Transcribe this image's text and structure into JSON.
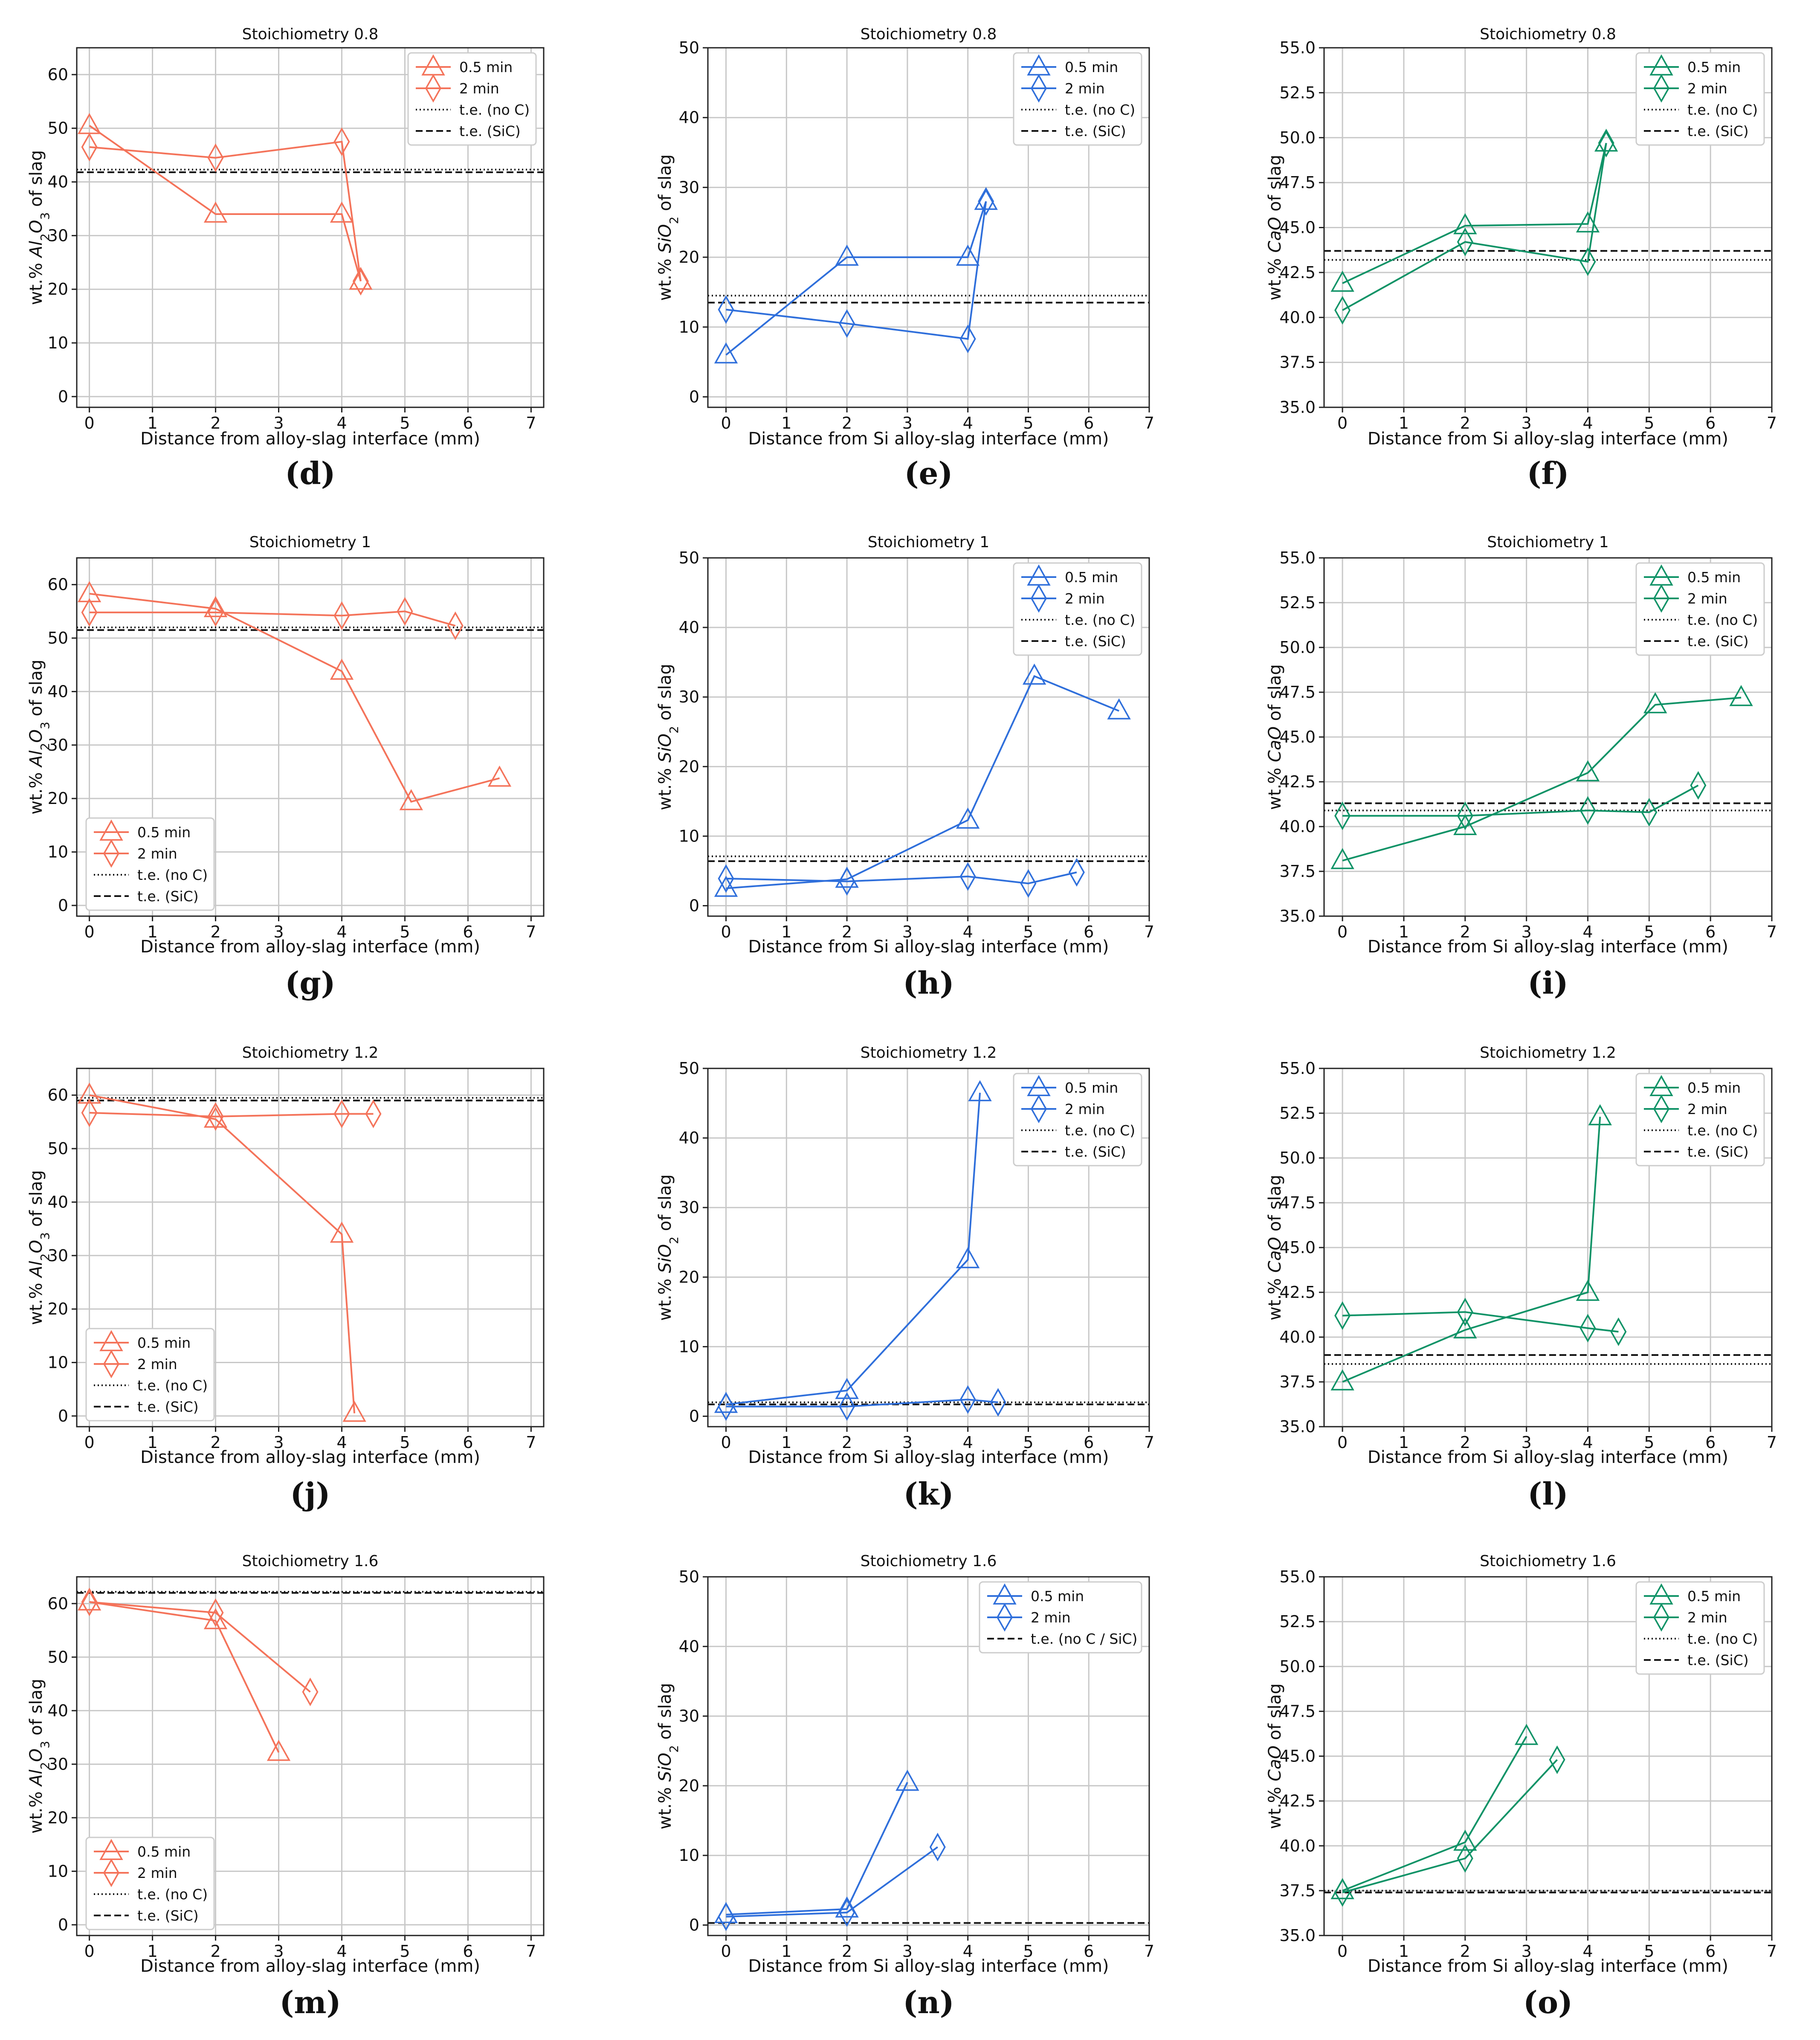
{
  "colors": {
    "al2o3": "#f4735a",
    "sio2": "#2f6fdb",
    "cao": "#109367",
    "te": "#111111"
  },
  "chart_data": [
    {
      "type": "line",
      "panel": "(d)",
      "title": "Stoichiometry 0.8",
      "xlabel": "Distance from alloy-slag interface (mm)",
      "ylabel": "wt.% Al2O3 of slag",
      "xlim": [
        -0.2,
        7.2
      ],
      "ylim": [
        -2,
        65
      ],
      "xticks": [
        "0",
        "1",
        "2",
        "3",
        "4",
        "5",
        "6",
        "7"
      ],
      "yticks": [
        "0",
        "10",
        "20",
        "30",
        "40",
        "50",
        "60"
      ],
      "legend_position": "top-right",
      "series": [
        {
          "name": "0.5 min",
          "marker": "triangle",
          "x": [
            0,
            2,
            4,
            4.3
          ],
          "y": [
            50.5,
            34,
            34,
            21.5
          ]
        },
        {
          "name": "2 min",
          "marker": "diamond",
          "x": [
            0,
            2,
            4,
            4.3
          ],
          "y": [
            46.5,
            44.5,
            47.5,
            21.5
          ]
        }
      ],
      "lines": [
        {
          "name": "t.e. (no C)",
          "style": "dotted",
          "y": 42.3
        },
        {
          "name": "t.e. (SiC)",
          "style": "dashed",
          "y": 41.8
        }
      ]
    },
    {
      "type": "line",
      "panel": "(e)",
      "title": "Stoichiometry 0.8",
      "xlabel": "Distance from Si alloy-slag interface (mm)",
      "ylabel": "wt.% SiO2 of slag",
      "xlim": [
        -0.3,
        7
      ],
      "ylim": [
        -1.5,
        50
      ],
      "xticks": [
        "0",
        "1",
        "2",
        "3",
        "4",
        "5",
        "6",
        "7"
      ],
      "yticks": [
        "0",
        "10",
        "20",
        "30",
        "40",
        "50"
      ],
      "legend_position": "top-right",
      "series": [
        {
          "name": "0.5 min",
          "marker": "triangle",
          "x": [
            0,
            2,
            4,
            4.3
          ],
          "y": [
            6,
            20,
            20,
            28
          ]
        },
        {
          "name": "2 min",
          "marker": "diamond",
          "x": [
            0,
            2,
            4,
            4.3
          ],
          "y": [
            12.5,
            10.5,
            8.3,
            28
          ]
        }
      ],
      "lines": [
        {
          "name": "t.e. (no C)",
          "style": "dotted",
          "y": 14.5
        },
        {
          "name": "t.e. (SiC)",
          "style": "dashed",
          "y": 13.5
        }
      ]
    },
    {
      "type": "line",
      "panel": "(f)",
      "title": "Stoichiometry 0.8",
      "xlabel": "Distance from Si alloy-slag interface (mm)",
      "ylabel": "wt.% CaO of slag",
      "xlim": [
        -0.3,
        7
      ],
      "ylim": [
        35,
        55
      ],
      "xticks": [
        "0",
        "1",
        "2",
        "3",
        "4",
        "5",
        "6",
        "7"
      ],
      "yticks": [
        "35.0",
        "37.5",
        "40.0",
        "42.5",
        "45.0",
        "47.5",
        "50.0",
        "52.5",
        "55.0"
      ],
      "legend_position": "top-right",
      "series": [
        {
          "name": "0.5 min",
          "marker": "triangle",
          "x": [
            0,
            2,
            4,
            4.3
          ],
          "y": [
            41.9,
            45.1,
            45.2,
            49.7
          ]
        },
        {
          "name": "2 min",
          "marker": "diamond",
          "x": [
            0,
            2,
            4,
            4.3
          ],
          "y": [
            40.4,
            44.2,
            43.1,
            49.7
          ]
        }
      ],
      "lines": [
        {
          "name": "t.e. (no C)",
          "style": "dotted",
          "y": 43.2
        },
        {
          "name": "t.e. (SiC)",
          "style": "dashed",
          "y": 43.7
        }
      ]
    },
    {
      "type": "line",
      "panel": "(g)",
      "title": "Stoichiometry 1",
      "xlabel": "Distance from alloy-slag interface (mm)",
      "ylabel": "wt.% Al2O3 of slag",
      "xlim": [
        -0.2,
        7.2
      ],
      "ylim": [
        -2,
        65
      ],
      "xticks": [
        "0",
        "1",
        "2",
        "3",
        "4",
        "5",
        "6",
        "7"
      ],
      "yticks": [
        "0",
        "10",
        "20",
        "30",
        "40",
        "50",
        "60"
      ],
      "legend_position": "bottom-left",
      "series": [
        {
          "name": "0.5 min",
          "marker": "triangle",
          "x": [
            0,
            2,
            4,
            5.1,
            6.5
          ],
          "y": [
            58.3,
            55.5,
            43.8,
            19.4,
            23.8
          ]
        },
        {
          "name": "2 min",
          "marker": "diamond",
          "x": [
            0,
            2,
            4,
            5,
            5.8
          ],
          "y": [
            54.8,
            54.8,
            54.2,
            55,
            52.3
          ]
        }
      ],
      "lines": [
        {
          "name": "t.e. (no C)",
          "style": "dotted",
          "y": 52
        },
        {
          "name": "t.e. (SiC)",
          "style": "dashed",
          "y": 51.5
        }
      ]
    },
    {
      "type": "line",
      "panel": "(h)",
      "title": "Stoichiometry 1",
      "xlabel": "Distance from Si alloy-slag interface (mm)",
      "ylabel": "wt.% SiO2 of slag",
      "xlim": [
        -0.3,
        7
      ],
      "ylim": [
        -1.5,
        50
      ],
      "xticks": [
        "0",
        "1",
        "2",
        "3",
        "4",
        "5",
        "6",
        "7"
      ],
      "yticks": [
        "0",
        "10",
        "20",
        "30",
        "40",
        "50"
      ],
      "legend_position": "top-right",
      "series": [
        {
          "name": "0.5 min",
          "marker": "triangle",
          "x": [
            0,
            2,
            4,
            5.1,
            6.5
          ],
          "y": [
            2.5,
            3.8,
            12.3,
            33,
            28
          ]
        },
        {
          "name": "2 min",
          "marker": "diamond",
          "x": [
            0,
            2,
            4,
            5,
            5.8
          ],
          "y": [
            3.9,
            3.5,
            4.2,
            3.2,
            4.8
          ]
        }
      ],
      "lines": [
        {
          "name": "t.e. (no C)",
          "style": "dotted",
          "y": 7.1
        },
        {
          "name": "t.e. (SiC)",
          "style": "dashed",
          "y": 6.4
        }
      ]
    },
    {
      "type": "line",
      "panel": "(i)",
      "title": "Stoichiometry 1",
      "xlabel": "Distance from Si alloy-slag interface (mm)",
      "ylabel": "wt.% CaO of slag",
      "xlim": [
        -0.3,
        7
      ],
      "ylim": [
        35,
        55
      ],
      "xticks": [
        "0",
        "1",
        "2",
        "3",
        "4",
        "5",
        "6",
        "7"
      ],
      "yticks": [
        "35.0",
        "37.5",
        "40.0",
        "42.5",
        "45.0",
        "47.5",
        "50.0",
        "52.5",
        "55.0"
      ],
      "legend_position": "top-right",
      "series": [
        {
          "name": "0.5 min",
          "marker": "triangle",
          "x": [
            0,
            2,
            4,
            5.1,
            6.5
          ],
          "y": [
            38.1,
            40,
            43,
            46.8,
            47.2
          ]
        },
        {
          "name": "2 min",
          "marker": "diamond",
          "x": [
            0,
            2,
            4,
            5,
            5.8
          ],
          "y": [
            40.6,
            40.6,
            40.9,
            40.8,
            42.3
          ]
        }
      ],
      "lines": [
        {
          "name": "t.e. (no C)",
          "style": "dotted",
          "y": 40.9
        },
        {
          "name": "t.e. (SiC)",
          "style": "dashed",
          "y": 41.3
        }
      ]
    },
    {
      "type": "line",
      "panel": "(j)",
      "title": "Stoichiometry 1.2",
      "xlabel": "Distance from alloy-slag interface (mm)",
      "ylabel": "wt.% Al2O3 of slag",
      "xlim": [
        -0.2,
        7.2
      ],
      "ylim": [
        -2,
        65
      ],
      "xticks": [
        "0",
        "1",
        "2",
        "3",
        "4",
        "5",
        "6",
        "7"
      ],
      "yticks": [
        "0",
        "10",
        "20",
        "30",
        "40",
        "50",
        "60"
      ],
      "legend_position": "bottom-left",
      "series": [
        {
          "name": "0.5 min",
          "marker": "triangle",
          "x": [
            0,
            2,
            4,
            4.2
          ],
          "y": [
            60,
            55.5,
            34,
            0.5
          ]
        },
        {
          "name": "2 min",
          "marker": "diamond",
          "x": [
            0,
            2,
            4,
            4.5
          ],
          "y": [
            56.7,
            56,
            56.5,
            56.5
          ]
        }
      ],
      "lines": [
        {
          "name": "t.e. (no C)",
          "style": "dotted",
          "y": 59.5
        },
        {
          "name": "t.e. (SiC)",
          "style": "dashed",
          "y": 59
        }
      ]
    },
    {
      "type": "line",
      "panel": "(k)",
      "title": "Stoichiometry 1.2",
      "xlabel": "Distance from Si alloy-slag interface (mm)",
      "ylabel": "wt.% SiO2 of slag",
      "xlim": [
        -0.3,
        7
      ],
      "ylim": [
        -1.5,
        50
      ],
      "xticks": [
        "0",
        "1",
        "2",
        "3",
        "4",
        "5",
        "6",
        "7"
      ],
      "yticks": [
        "0",
        "10",
        "20",
        "30",
        "40",
        "50"
      ],
      "legend_position": "top-right",
      "series": [
        {
          "name": "0.5 min",
          "marker": "triangle",
          "x": [
            0,
            2,
            4,
            4.2
          ],
          "y": [
            1.7,
            3.7,
            22.5,
            46.5
          ]
        },
        {
          "name": "2 min",
          "marker": "diamond",
          "x": [
            0,
            2,
            4,
            4.5
          ],
          "y": [
            1.4,
            1.4,
            2.4,
            2
          ]
        }
      ],
      "lines": [
        {
          "name": "t.e. (no C)",
          "style": "dotted",
          "y": 2
        },
        {
          "name": "t.e. (SiC)",
          "style": "dashed",
          "y": 1.7
        }
      ]
    },
    {
      "type": "line",
      "panel": "(l)",
      "title": "Stoichiometry 1.2",
      "xlabel": "Distance from Si alloy-slag interface (mm)",
      "ylabel": "wt.% CaO of slag",
      "xlim": [
        -0.3,
        7
      ],
      "ylim": [
        35,
        55
      ],
      "xticks": [
        "0",
        "1",
        "2",
        "3",
        "4",
        "5",
        "6",
        "7"
      ],
      "yticks": [
        "35.0",
        "37.5",
        "40.0",
        "42.5",
        "45.0",
        "47.5",
        "50.0",
        "52.5",
        "55.0"
      ],
      "legend_position": "top-right",
      "series": [
        {
          "name": "0.5 min",
          "marker": "triangle",
          "x": [
            0,
            2,
            4,
            4.2
          ],
          "y": [
            37.5,
            40.4,
            42.5,
            52.3
          ]
        },
        {
          "name": "2 min",
          "marker": "diamond",
          "x": [
            0,
            2,
            4,
            4.5
          ],
          "y": [
            41.2,
            41.4,
            40.5,
            40.3
          ]
        }
      ],
      "lines": [
        {
          "name": "t.e. (no C)",
          "style": "dotted",
          "y": 38.5
        },
        {
          "name": "t.e. (SiC)",
          "style": "dashed",
          "y": 39
        }
      ]
    },
    {
      "type": "line",
      "panel": "(m)",
      "title": "Stoichiometry 1.6",
      "xlabel": "Distance from alloy-slag interface (mm)",
      "ylabel": "wt.% Al2O3 of slag",
      "xlim": [
        -0.2,
        7.2
      ],
      "ylim": [
        -2,
        65
      ],
      "xticks": [
        "0",
        "1",
        "2",
        "3",
        "4",
        "5",
        "6",
        "7"
      ],
      "yticks": [
        "0",
        "10",
        "20",
        "30",
        "40",
        "50",
        "60"
      ],
      "legend_position": "bottom-left",
      "series": [
        {
          "name": "0.5 min",
          "marker": "triangle",
          "x": [
            0,
            2,
            3
          ],
          "y": [
            60.3,
            56.8,
            32.2
          ]
        },
        {
          "name": "2 min",
          "marker": "diamond",
          "x": [
            0,
            2,
            3.5
          ],
          "y": [
            60.3,
            58.3,
            43.5
          ]
        }
      ],
      "lines": [
        {
          "name": "t.e. (no C)",
          "style": "dotted",
          "y": 62.2
        },
        {
          "name": "t.e. (SiC)",
          "style": "dashed",
          "y": 62
        }
      ]
    },
    {
      "type": "line",
      "panel": "(n)",
      "title": "Stoichiometry 1.6",
      "xlabel": "Distance from Si alloy-slag interface (mm)",
      "ylabel": "wt.% SiO2 of slag",
      "xlim": [
        -0.3,
        7
      ],
      "ylim": [
        -1.5,
        50
      ],
      "xticks": [
        "0",
        "1",
        "2",
        "3",
        "4",
        "5",
        "6",
        "7"
      ],
      "yticks": [
        "0",
        "10",
        "20",
        "30",
        "40",
        "50"
      ],
      "legend_position": "top-right",
      "series": [
        {
          "name": "0.5 min",
          "marker": "triangle",
          "x": [
            0,
            2,
            3
          ],
          "y": [
            1.5,
            2.3,
            20.5
          ]
        },
        {
          "name": "2 min",
          "marker": "diamond",
          "x": [
            0,
            2,
            3.5
          ],
          "y": [
            1.2,
            1.8,
            11.2
          ]
        }
      ],
      "lines": [
        {
          "name": "t.e. (no C / SiC)",
          "style": "dashed",
          "y": 0.3
        }
      ]
    },
    {
      "type": "line",
      "panel": "(o)",
      "title": "Stoichiometry 1.6",
      "xlabel": "Distance from Si alloy-slag interface (mm)",
      "ylabel": "wt.% CaO of slag",
      "xlim": [
        -0.3,
        7
      ],
      "ylim": [
        35,
        55
      ],
      "xticks": [
        "0",
        "1",
        "2",
        "3",
        "4",
        "5",
        "6",
        "7"
      ],
      "yticks": [
        "35.0",
        "37.5",
        "40.0",
        "42.5",
        "45.0",
        "47.5",
        "50.0",
        "52.5",
        "55.0"
      ],
      "legend_position": "top-right",
      "series": [
        {
          "name": "0.5 min",
          "marker": "triangle",
          "x": [
            0,
            2,
            3
          ],
          "y": [
            37.5,
            40.2,
            46.1
          ]
        },
        {
          "name": "2 min",
          "marker": "diamond",
          "x": [
            0,
            2,
            3.5
          ],
          "y": [
            37.4,
            39.3,
            44.8
          ]
        }
      ],
      "lines": [
        {
          "name": "t.e. (no C)",
          "style": "dotted",
          "y": 37.5
        },
        {
          "name": "t.e. (SiC)",
          "style": "dashed",
          "y": 37.4
        }
      ]
    }
  ]
}
